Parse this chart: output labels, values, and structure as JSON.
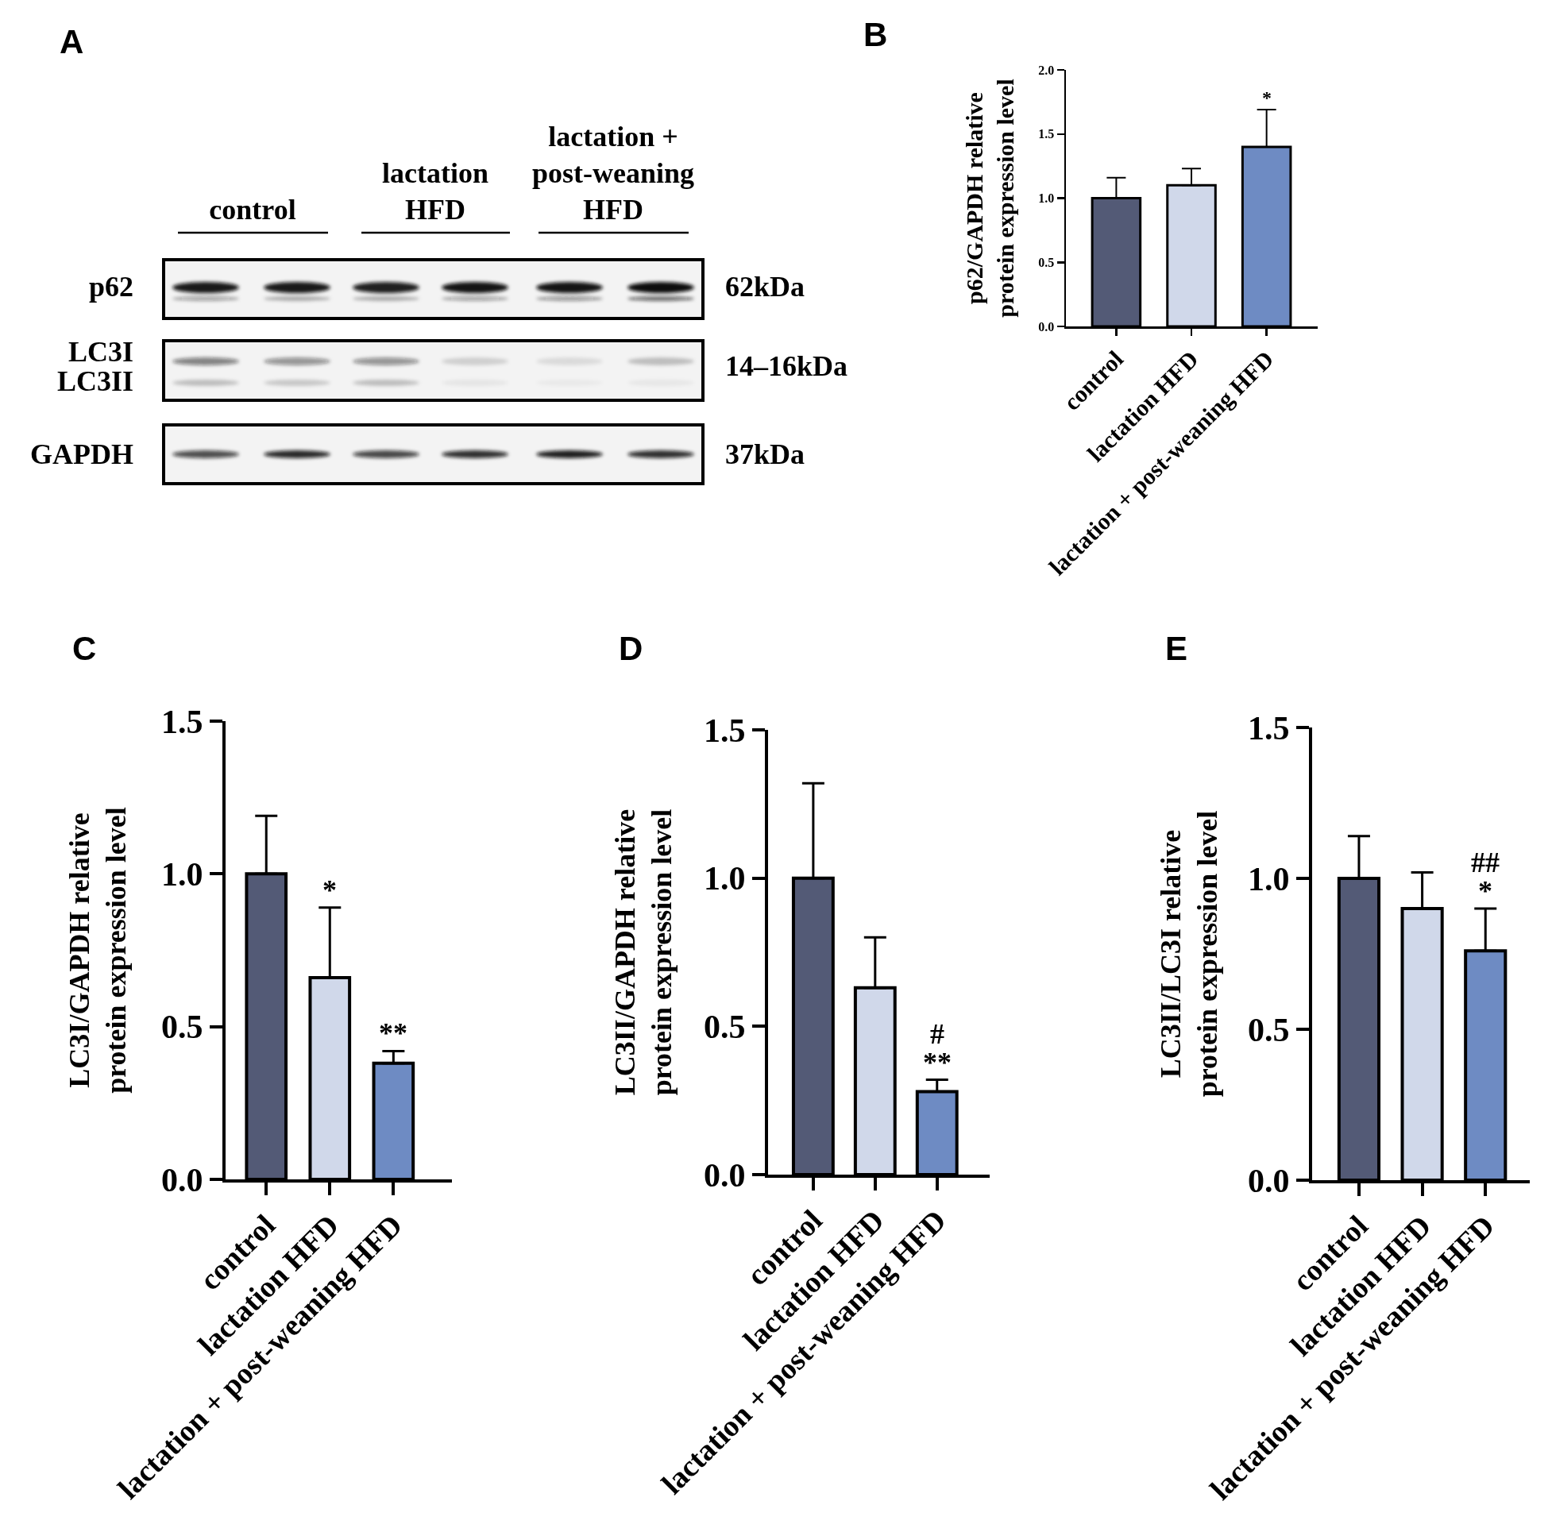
{
  "chart_data": [
    {
      "type": "other",
      "title": "A",
      "annotations": [
        "control",
        "lactation HFD",
        "lactation + post-weaning HFD",
        "p62",
        "LC3I",
        "LC3II",
        "GAPDH",
        "62kDa",
        "14–16kDa",
        "37kDa"
      ]
    },
    {
      "type": "bar",
      "title": "B",
      "categories": [
        "control",
        "lactation HFD",
        "lactation + post-weaning HFD"
      ],
      "values": [
        1.0,
        1.1,
        1.4
      ],
      "colors": [
        "#535a76",
        "#d0d8ea",
        "#6e8bc3"
      ],
      "errors": [
        [
          1.0,
          1.16
        ],
        [
          1.1,
          1.23
        ],
        [
          1.4,
          1.69
        ]
      ],
      "ylabel": "p62/GAPDH relative protein expression level",
      "ylim": [
        0,
        2
      ],
      "yticks": [
        {
          "value": 0,
          "label": "0.0"
        },
        {
          "value": 0.5,
          "label": "0.5"
        },
        {
          "value": 1,
          "label": "1.0"
        },
        {
          "value": 1.5,
          "label": "1.5"
        },
        {
          "value": 2,
          "label": "2.0"
        }
      ],
      "annotations": [
        {
          "text": "*",
          "x": "lactation + post-weaning HFD",
          "y": 1.69
        }
      ],
      "grid": false
    },
    {
      "type": "bar",
      "title": "C",
      "categories": [
        "control",
        "lactation HFD",
        "lactation + post-weaning HFD"
      ],
      "values": [
        1.0,
        0.66,
        0.38
      ],
      "colors": [
        "#535a76",
        "#d0d8ea",
        "#6e8bc3"
      ],
      "errors": [
        [
          1.0,
          1.19
        ],
        [
          0.66,
          0.89
        ],
        [
          0.38,
          0.42
        ]
      ],
      "ylabel": "LC3I/GAPDH relative protein expression level",
      "ylim": [
        0,
        1.5
      ],
      "yticks": [
        {
          "value": 0,
          "label": "0.0"
        },
        {
          "value": 0.5,
          "label": "0.5"
        },
        {
          "value": 1,
          "label": "1.0"
        },
        {
          "value": 1.5,
          "label": "1.5"
        }
      ],
      "annotations": [
        {
          "text": "*",
          "x": "lactation HFD",
          "y": 0.89
        },
        {
          "text": "**",
          "x": "lactation + post-weaning HFD",
          "y": 0.42
        }
      ],
      "grid": false
    },
    {
      "type": "bar",
      "title": "D",
      "categories": [
        "control",
        "lactation HFD",
        "lactation + post-weaning HFD"
      ],
      "values": [
        1.0,
        0.63,
        0.28
      ],
      "colors": [
        "#535a76",
        "#d0d8ea",
        "#6e8bc3"
      ],
      "errors": [
        [
          1.0,
          1.32
        ],
        [
          0.63,
          0.8
        ],
        [
          0.28,
          0.32
        ]
      ],
      "ylabel": "LC3II/GAPDH relative protein expression level",
      "ylim": [
        0,
        1.5
      ],
      "yticks": [
        {
          "value": 0,
          "label": "0.0"
        },
        {
          "value": 0.5,
          "label": "0.5"
        },
        {
          "value": 1,
          "label": "1.0"
        },
        {
          "value": 1.5,
          "label": "1.5"
        }
      ],
      "annotations": [
        {
          "text": "**",
          "x": "lactation + post-weaning HFD",
          "y": 0.32
        },
        {
          "text": "#",
          "x": "lactation + post-weaning HFD",
          "y": 0.32
        }
      ],
      "grid": false
    },
    {
      "type": "bar",
      "title": "E",
      "categories": [
        "control",
        "lactation HFD",
        "lactation + post-weaning HFD"
      ],
      "values": [
        1.0,
        0.9,
        0.76
      ],
      "colors": [
        "#535a76",
        "#d0d8ea",
        "#6e8bc3"
      ],
      "errors": [
        [
          1.0,
          1.14
        ],
        [
          0.9,
          1.02
        ],
        [
          0.76,
          0.9
        ]
      ],
      "ylabel": "LC3II/LC3I relative protein expression level",
      "ylim": [
        0,
        1.5
      ],
      "yticks": [
        {
          "value": 0,
          "label": "0.0"
        },
        {
          "value": 0.5,
          "label": "0.5"
        },
        {
          "value": 1,
          "label": "1.0"
        },
        {
          "value": 1.5,
          "label": "1.5"
        }
      ],
      "annotations": [
        {
          "text": "*",
          "x": "lactation + post-weaning HFD",
          "y": 0.9
        },
        {
          "text": "##",
          "x": "lactation + post-weaning HFD",
          "y": 0.9
        }
      ],
      "grid": false
    }
  ]
}
